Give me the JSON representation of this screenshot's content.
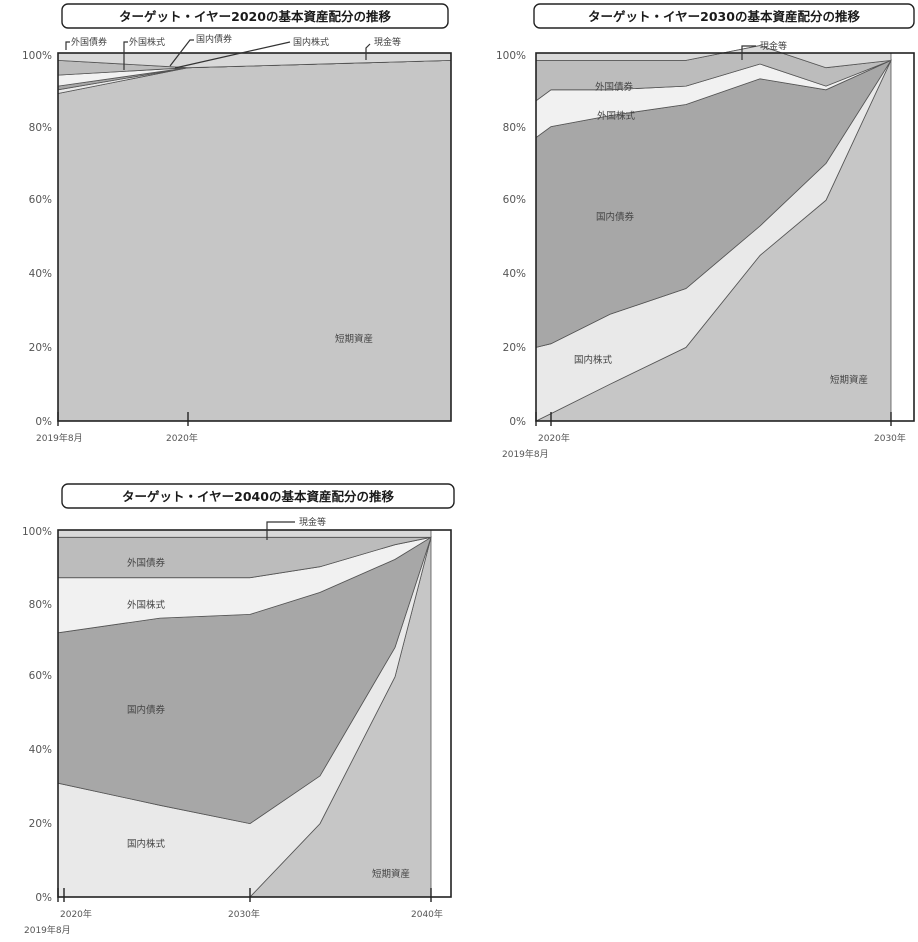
{
  "chart_data": [
    {
      "type": "area",
      "title": "ターゲット・イヤー2020の基本資産配分の推移",
      "x": [
        "2019-08",
        "2020-01",
        "2021-12"
      ],
      "x_tick_labels": [
        "2019年8月",
        "2020年"
      ],
      "y_tick_labels": [
        "0%",
        "20%",
        "40%",
        "60%",
        "80%",
        "100%"
      ],
      "ylim": [
        0,
        100
      ],
      "series": [
        {
          "name": "短期資産",
          "values": [
            89,
            96,
            98
          ]
        },
        {
          "name": "国内株式",
          "values": [
            1,
            0,
            0
          ]
        },
        {
          "name": "国内債券",
          "values": [
            1,
            0,
            0
          ]
        },
        {
          "name": "外国株式",
          "values": [
            3,
            0,
            0
          ]
        },
        {
          "name": "外国債券",
          "values": [
            4,
            0,
            0
          ]
        },
        {
          "name": "現金等",
          "values": [
            2,
            2,
            2
          ]
        }
      ],
      "labels": {
        "short": "短期資産"
      },
      "callouts": [
        "外国債券",
        "外国株式",
        "国内債券",
        "国内株式",
        "現金等"
      ]
    },
    {
      "type": "area",
      "title": "ターゲット・イヤー2030の基本資産配分の推移",
      "x": [
        "2019-08",
        "2020",
        "2022",
        "2024",
        "2026",
        "2028",
        "2030"
      ],
      "x_tick_labels": [
        "2020年",
        "2019年8月",
        "2030年"
      ],
      "y_tick_labels": [
        "0%",
        "20%",
        "40%",
        "60%",
        "80%",
        "100%"
      ],
      "ylim": [
        0,
        100
      ],
      "series": [
        {
          "name": "短期資産",
          "values": [
            0,
            2,
            10,
            20,
            45,
            60,
            98
          ]
        },
        {
          "name": "国内株式",
          "values": [
            20,
            19,
            19,
            16,
            8,
            10,
            0
          ]
        },
        {
          "name": "国内債券",
          "values": [
            57,
            59,
            54,
            50,
            40,
            20,
            0
          ]
        },
        {
          "name": "外国株式",
          "values": [
            10,
            10,
            7,
            5,
            4,
            1,
            0
          ]
        },
        {
          "name": "外国債券",
          "values": [
            11,
            8,
            8,
            7,
            5,
            5,
            0
          ]
        },
        {
          "name": "現金等",
          "values": [
            2,
            2,
            2,
            2,
            2,
            2,
            2
          ]
        }
      ],
      "labels": {
        "fb": "外国債券",
        "fs": "外国株式",
        "db": "国内債券",
        "ds": "国内株式",
        "short": "短期資産",
        "cash": "現金等"
      }
    },
    {
      "type": "area",
      "title": "ターゲット・イヤー2040の基本資産配分の推移",
      "x": [
        "2019-08",
        "2025",
        "2030",
        "2034",
        "2038",
        "2040"
      ],
      "x_tick_labels": [
        "2020年",
        "2019年8月",
        "2030年",
        "2040年"
      ],
      "y_tick_labels": [
        "0%",
        "20%",
        "40%",
        "60%",
        "80%",
        "100%"
      ],
      "ylim": [
        0,
        100
      ],
      "series": [
        {
          "name": "短期資産",
          "values": [
            0,
            0,
            0,
            20,
            60,
            98
          ]
        },
        {
          "name": "国内株式",
          "values": [
            31,
            25,
            20,
            13,
            8,
            0
          ]
        },
        {
          "name": "国内債券",
          "values": [
            41,
            51,
            57,
            50,
            24,
            0
          ]
        },
        {
          "name": "外国株式",
          "values": [
            15,
            11,
            10,
            7,
            4,
            0
          ]
        },
        {
          "name": "外国債券",
          "values": [
            11,
            11,
            11,
            8,
            2,
            0
          ]
        },
        {
          "name": "現金等",
          "values": [
            2,
            2,
            2,
            2,
            2,
            2
          ]
        }
      ],
      "labels": {
        "fb": "外国債券",
        "fs": "外国株式",
        "db": "国内債券",
        "ds": "国内株式",
        "short": "短期資産",
        "cash": "現金等"
      }
    }
  ]
}
